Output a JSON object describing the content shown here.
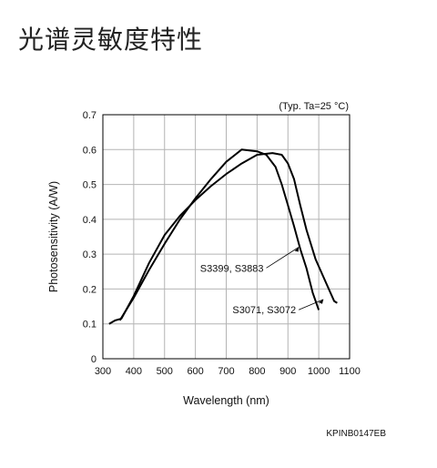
{
  "page": {
    "title": "光谱灵敏度特性"
  },
  "chart_data": {
    "type": "line",
    "title": "",
    "xlabel": "Wavelength (nm)",
    "ylabel": "Photosensitivity (A/W)",
    "xlim": [
      300,
      1100
    ],
    "ylim": [
      0,
      0.7
    ],
    "xticks": [
      300,
      400,
      500,
      600,
      700,
      800,
      900,
      1000,
      1100
    ],
    "yticks": [
      0,
      0.1,
      0.2,
      0.3,
      0.4,
      0.5,
      0.6,
      0.7
    ],
    "ytick_labels": [
      "0",
      "0.1",
      "0.2",
      "0.3",
      "0.4",
      "0.5",
      "0.6",
      "0.7"
    ],
    "grid": true,
    "condition_note": "(Typ. Ta=25 °C)",
    "figure_code": "KPINB0147EB",
    "series": [
      {
        "name": "S3399, S3883",
        "x": [
          355,
          400,
          450,
          500,
          550,
          600,
          650,
          700,
          750,
          800,
          830,
          860,
          880,
          900,
          920,
          940,
          960,
          980,
          1000
        ],
        "y": [
          0.11,
          0.175,
          0.255,
          0.33,
          0.4,
          0.46,
          0.515,
          0.565,
          0.6,
          0.595,
          0.585,
          0.55,
          0.5,
          0.44,
          0.38,
          0.315,
          0.26,
          0.19,
          0.14
        ],
        "label_anchor": [
          935,
          0.32
        ],
        "label_text_at": [
          830,
          0.25
        ]
      },
      {
        "name": "S3071, S3072",
        "x": [
          320,
          340,
          360,
          400,
          450,
          500,
          550,
          600,
          650,
          700,
          750,
          800,
          850,
          880,
          900,
          920,
          940,
          960,
          990,
          1020,
          1050,
          1060
        ],
        "y": [
          0.1,
          0.11,
          0.115,
          0.18,
          0.275,
          0.355,
          0.41,
          0.455,
          0.495,
          0.53,
          0.56,
          0.585,
          0.59,
          0.585,
          0.56,
          0.515,
          0.44,
          0.37,
          0.285,
          0.225,
          0.165,
          0.16
        ],
        "label_anchor": [
          1015,
          0.17
        ],
        "label_text_at": [
          935,
          0.13
        ]
      }
    ]
  }
}
